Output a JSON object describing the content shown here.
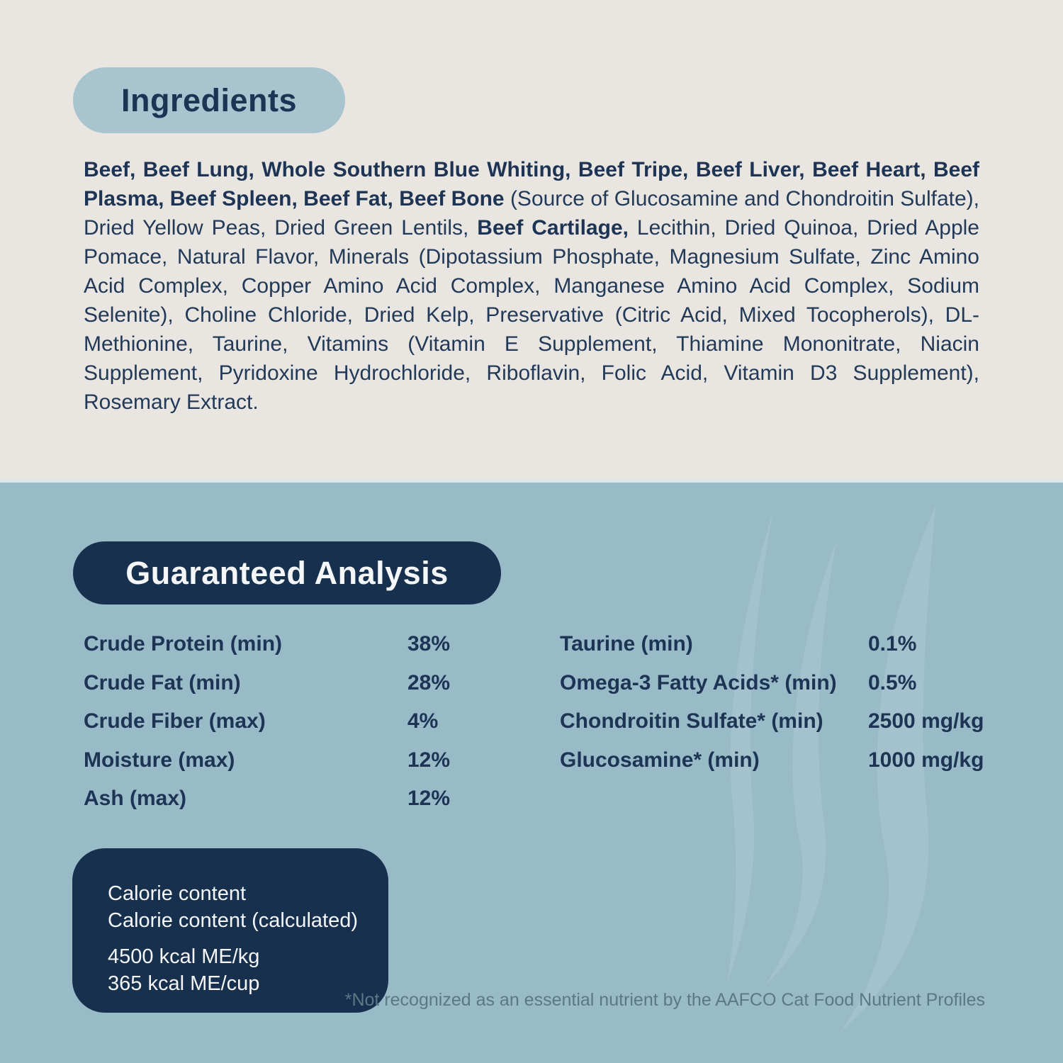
{
  "colors": {
    "cream_bg": "#e9e6e1",
    "blue_bg": "#99bbc8",
    "navy": "#16304e",
    "navy_text": "#223a58",
    "pill_blue": "#a7c4cf",
    "white_text": "#f4f6f7",
    "footnote": "#5b7886",
    "watermark": "#a4c2cd",
    "divider": "#d9e5e9"
  },
  "ingredients": {
    "title": "Ingredients",
    "segments": [
      {
        "bold": true,
        "text": "Beef, Beef Lung, Whole Southern Blue Whiting, Beef Tripe, Beef Liver, Beef Heart, Beef Plasma, Beef Spleen, Beef Fat, Beef Bone"
      },
      {
        "bold": false,
        "text": " (Source of Glucosamine and Chondroitin Sulfate), Dried Yellow Peas, Dried Green Lentils, "
      },
      {
        "bold": true,
        "text": "Beef Cartilage,"
      },
      {
        "bold": false,
        "text": " Lecithin, Dried Quinoa, Dried Apple Pomace, Natural Flavor, Minerals (Dipotassium Phosphate, Magnesium Sulfate, Zinc Amino Acid Complex, Copper Amino Acid Complex, Manganese Amino Acid Complex, Sodium Selenite), Choline Chloride, Dried Kelp, Preservative (Citric Acid, Mixed Tocopherols), DL-Methionine, Taurine, Vitamins (Vitamin E Supplement, Thiamine Mononitrate, Niacin Supplement, Pyridoxine Hydrochloride, Riboflavin, Folic Acid, Vitamin D3 Supplement), Rosemary Extract."
      }
    ]
  },
  "analysis": {
    "title": "Guaranteed Analysis",
    "left_rows": [
      {
        "label": "Crude Protein (min)",
        "value": "38%"
      },
      {
        "label": "Crude Fat (min)",
        "value": "28%"
      },
      {
        "label": "Crude Fiber (max)",
        "value": "4%"
      },
      {
        "label": "Moisture (max)",
        "value": "12%"
      },
      {
        "label": "Ash (max)",
        "value": "12%"
      }
    ],
    "right_rows": [
      {
        "label": "Taurine (min)",
        "value": "0.1%"
      },
      {
        "label": "Omega-3 Fatty Acids* (min)",
        "value": "0.5%"
      },
      {
        "label": "Chondroitin Sulfate* (min)",
        "value": "2500 mg/kg"
      },
      {
        "label": "Glucosamine* (min)",
        "value": "1000 mg/kg"
      }
    ]
  },
  "calories": {
    "heading_lines": [
      "Calorie content",
      "Calorie content (calculated)"
    ],
    "value_lines": [
      "4500 kcal ME/kg",
      "365 kcal ME/cup"
    ]
  },
  "footnote": "*Not recognized as an essential nutrient by the AAFCO Cat Food Nutrient Profiles"
}
